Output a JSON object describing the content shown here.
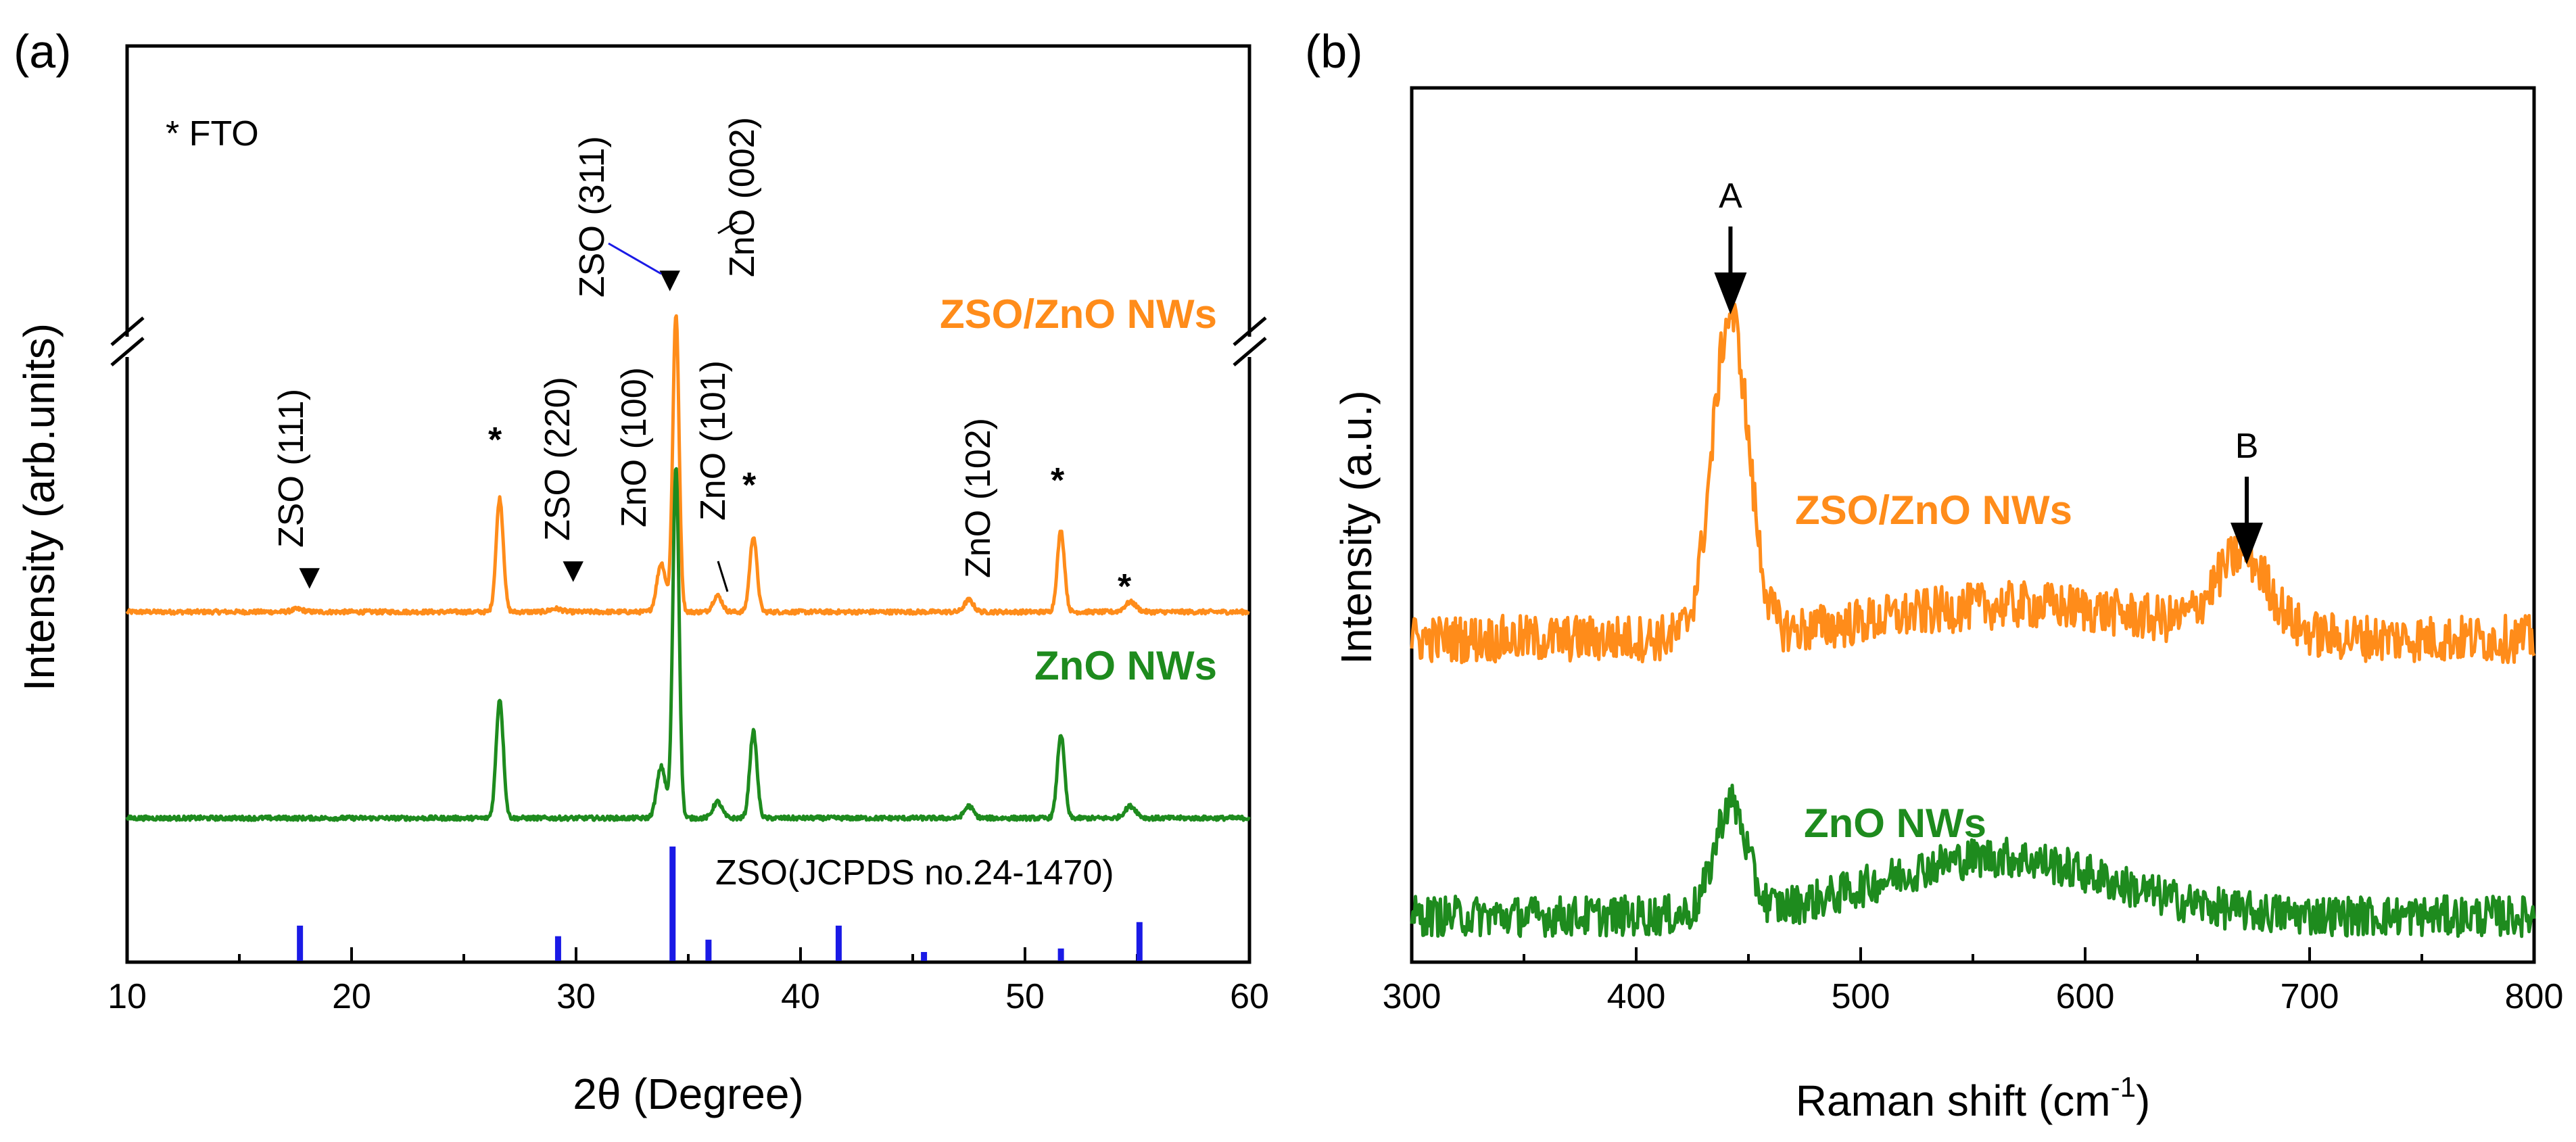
{
  "chart_data": [
    {
      "panel": "(a)",
      "type": "line",
      "xlabel": "2θ (Degree)",
      "ylabel": "Intensity (arb.units)",
      "xlim": [
        10,
        60
      ],
      "xticks": [
        10,
        20,
        30,
        40,
        50,
        60
      ],
      "legend_note": "* FTO",
      "axis_break": true,
      "series": [
        {
          "name": "ZSO/ZnO NWs",
          "color": "#FF8C1A",
          "baseline": 1,
          "noise": 0.04,
          "peaks": [
            {
              "x": 17.6,
              "h": 0.05,
              "w": 0.25
            },
            {
              "x": 26.6,
              "h": 2.1,
              "w": 0.16
            },
            {
              "x": 29.1,
              "h": 0.06,
              "w": 0.25
            },
            {
              "x": 33.8,
              "h": 0.9,
              "w": 0.2
            },
            {
              "x": 34.45,
              "h": 5.5,
              "w": 0.14
            },
            {
              "x": 36.3,
              "h": 0.3,
              "w": 0.2
            },
            {
              "x": 37.9,
              "h": 1.4,
              "w": 0.16
            },
            {
              "x": 47.5,
              "h": 0.22,
              "w": 0.2
            },
            {
              "x": 51.6,
              "h": 1.5,
              "w": 0.16
            },
            {
              "x": 54.7,
              "h": 0.18,
              "w": 0.25
            }
          ]
        },
        {
          "name": "ZnO NWs",
          "color": "#1E8B1E",
          "baseline": 0,
          "noise": 0.04,
          "peaks": [
            {
              "x": 26.6,
              "h": 2.2,
              "w": 0.16
            },
            {
              "x": 33.8,
              "h": 0.95,
              "w": 0.2
            },
            {
              "x": 34.45,
              "h": 6.5,
              "w": 0.14
            },
            {
              "x": 36.3,
              "h": 0.3,
              "w": 0.2
            },
            {
              "x": 37.9,
              "h": 1.6,
              "w": 0.16
            },
            {
              "x": 47.5,
              "h": 0.22,
              "w": 0.2
            },
            {
              "x": 51.6,
              "h": 1.55,
              "w": 0.16
            },
            {
              "x": 54.7,
              "h": 0.22,
              "w": 0.25
            }
          ]
        }
      ],
      "reference": {
        "name": "ZSO(JCPDS no.24-1470)",
        "color": "#1A1AE6",
        "lines": [
          {
            "x": 17.7,
            "h": 0.2
          },
          {
            "x": 29.2,
            "h": 0.14
          },
          {
            "x": 34.3,
            "h": 0.65
          },
          {
            "x": 35.9,
            "h": 0.12
          },
          {
            "x": 41.7,
            "h": 0.2
          },
          {
            "x": 45.5,
            "h": 0.05
          },
          {
            "x": 51.6,
            "h": 0.07
          },
          {
            "x": 55.1,
            "h": 0.22
          }
        ]
      },
      "annotations": [
        {
          "text": "ZSO (111)",
          "color": "#1A1AE6",
          "rotate": true,
          "marker": "▼"
        },
        {
          "text": "ZSO (220)",
          "color": "#1A1AE6",
          "rotate": true,
          "marker": "▼"
        },
        {
          "text": "ZSO (311)",
          "color": "#1A1AE6",
          "rotate": true,
          "marker": "▼"
        },
        {
          "text": "ZnO (100)",
          "color": "#000000",
          "rotate": true
        },
        {
          "text": "ZnO (101)",
          "color": "#000000",
          "rotate": true
        },
        {
          "text": "ZnO (002)",
          "color": "#000000",
          "rotate": true
        },
        {
          "text": "ZnO (102)",
          "color": "#000000",
          "rotate": true
        },
        {
          "text": "*",
          "color": "#000000"
        },
        {
          "text": "*",
          "color": "#000000"
        },
        {
          "text": "*",
          "color": "#000000"
        },
        {
          "text": "*",
          "color": "#000000"
        }
      ]
    },
    {
      "panel": "(b)",
      "type": "line",
      "xlabel_main": "Raman shift (cm",
      "xlabel_sup": "-1",
      "xlabel_close": ")",
      "ylabel": "Intensity (a.u.)",
      "xlim": [
        300,
        800
      ],
      "xticks": [
        300,
        400,
        500,
        600,
        700,
        800
      ],
      "series": [
        {
          "name": "ZSO/ZnO NWs",
          "color": "#FF8C1A",
          "peaks": [
            {
              "x": 442,
              "h": 1.9,
              "w": 8
            },
            {
              "x": 670,
              "h": 0.45,
              "w": 12
            },
            {
              "x": 570,
              "h": 0.2,
              "w": 60
            }
          ]
        },
        {
          "name": "ZnO NWs",
          "color": "#1E8B1E",
          "peaks": [
            {
              "x": 442,
              "h": 0.65,
              "w": 7
            },
            {
              "x": 560,
              "h": 0.35,
              "w": 50
            }
          ]
        }
      ],
      "markers": [
        {
          "label": "A",
          "x": 442
        },
        {
          "label": "B",
          "x": 672
        }
      ]
    }
  ]
}
